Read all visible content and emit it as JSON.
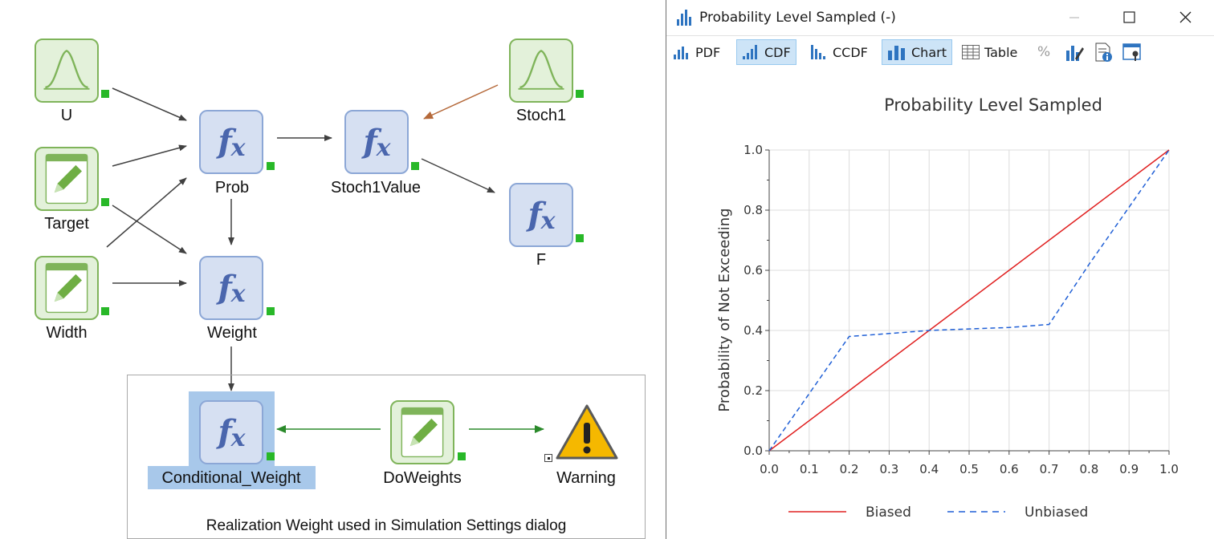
{
  "diagram": {
    "nodes": {
      "u": "U",
      "target": "Target",
      "width": "Width",
      "prob": "Prob",
      "weight": "Weight",
      "stoch1value": "Stoch1Value",
      "stoch1": "Stoch1",
      "f": "F",
      "conditional_weight": "Conditional_Weight",
      "doweights": "DoWeights",
      "warning": "Warning"
    },
    "fx_symbol": "f",
    "fx_sub": "x",
    "container_caption": "Realization Weight used in Simulation Settings dialog",
    "colors": {
      "stoch_fill": "#e3f1da",
      "stoch_border": "#7fb45a",
      "fx_fill": "#d6e0f2",
      "fx_border": "#8ca7d6",
      "status": "#28b828",
      "arrow_default": "#404040",
      "arrow_brown": "#b5693a",
      "arrow_green": "#2b8a2b",
      "warning_yellow": "#f5b800"
    }
  },
  "window": {
    "title": "Probability Level Sampled (-)",
    "toolbar": {
      "pdf": "PDF",
      "cdf": "CDF",
      "ccdf": "CCDF",
      "chart": "Chart",
      "table": "Table",
      "percent": "%"
    },
    "icons": [
      "chart-bars-icon",
      "percent-icon",
      "chart-edit-icon",
      "document-info-icon",
      "window-settings-icon"
    ]
  },
  "chart_data": {
    "type": "line",
    "title": "Probability Level Sampled",
    "xlabel": "",
    "ylabel": "Probability of Not Exceeding",
    "xlim": [
      0,
      1
    ],
    "ylim": [
      0,
      1
    ],
    "xticks": [
      "0.0",
      "0.1",
      "0.2",
      "0.3",
      "0.4",
      "0.5",
      "0.6",
      "0.7",
      "0.8",
      "0.9",
      "1.0"
    ],
    "yticks": [
      "0.0",
      "0.2",
      "0.4",
      "0.6",
      "0.8",
      "1.0"
    ],
    "grid": true,
    "legend_position": "bottom",
    "series": [
      {
        "name": "Biased",
        "color": "#e02020",
        "style": "solid",
        "x": [
          0,
          0.2,
          0.4,
          0.6,
          0.8,
          1.0
        ],
        "y": [
          0,
          0.2,
          0.4,
          0.6,
          0.8,
          1.0
        ]
      },
      {
        "name": "Unbiased",
        "color": "#1f5fd6",
        "style": "dashed",
        "x": [
          0,
          0.1,
          0.2,
          0.3,
          0.4,
          0.5,
          0.6,
          0.7,
          0.8,
          0.9,
          1.0
        ],
        "y": [
          0,
          0.19,
          0.38,
          0.39,
          0.4,
          0.405,
          0.41,
          0.42,
          0.62,
          0.81,
          1.0
        ]
      }
    ]
  }
}
